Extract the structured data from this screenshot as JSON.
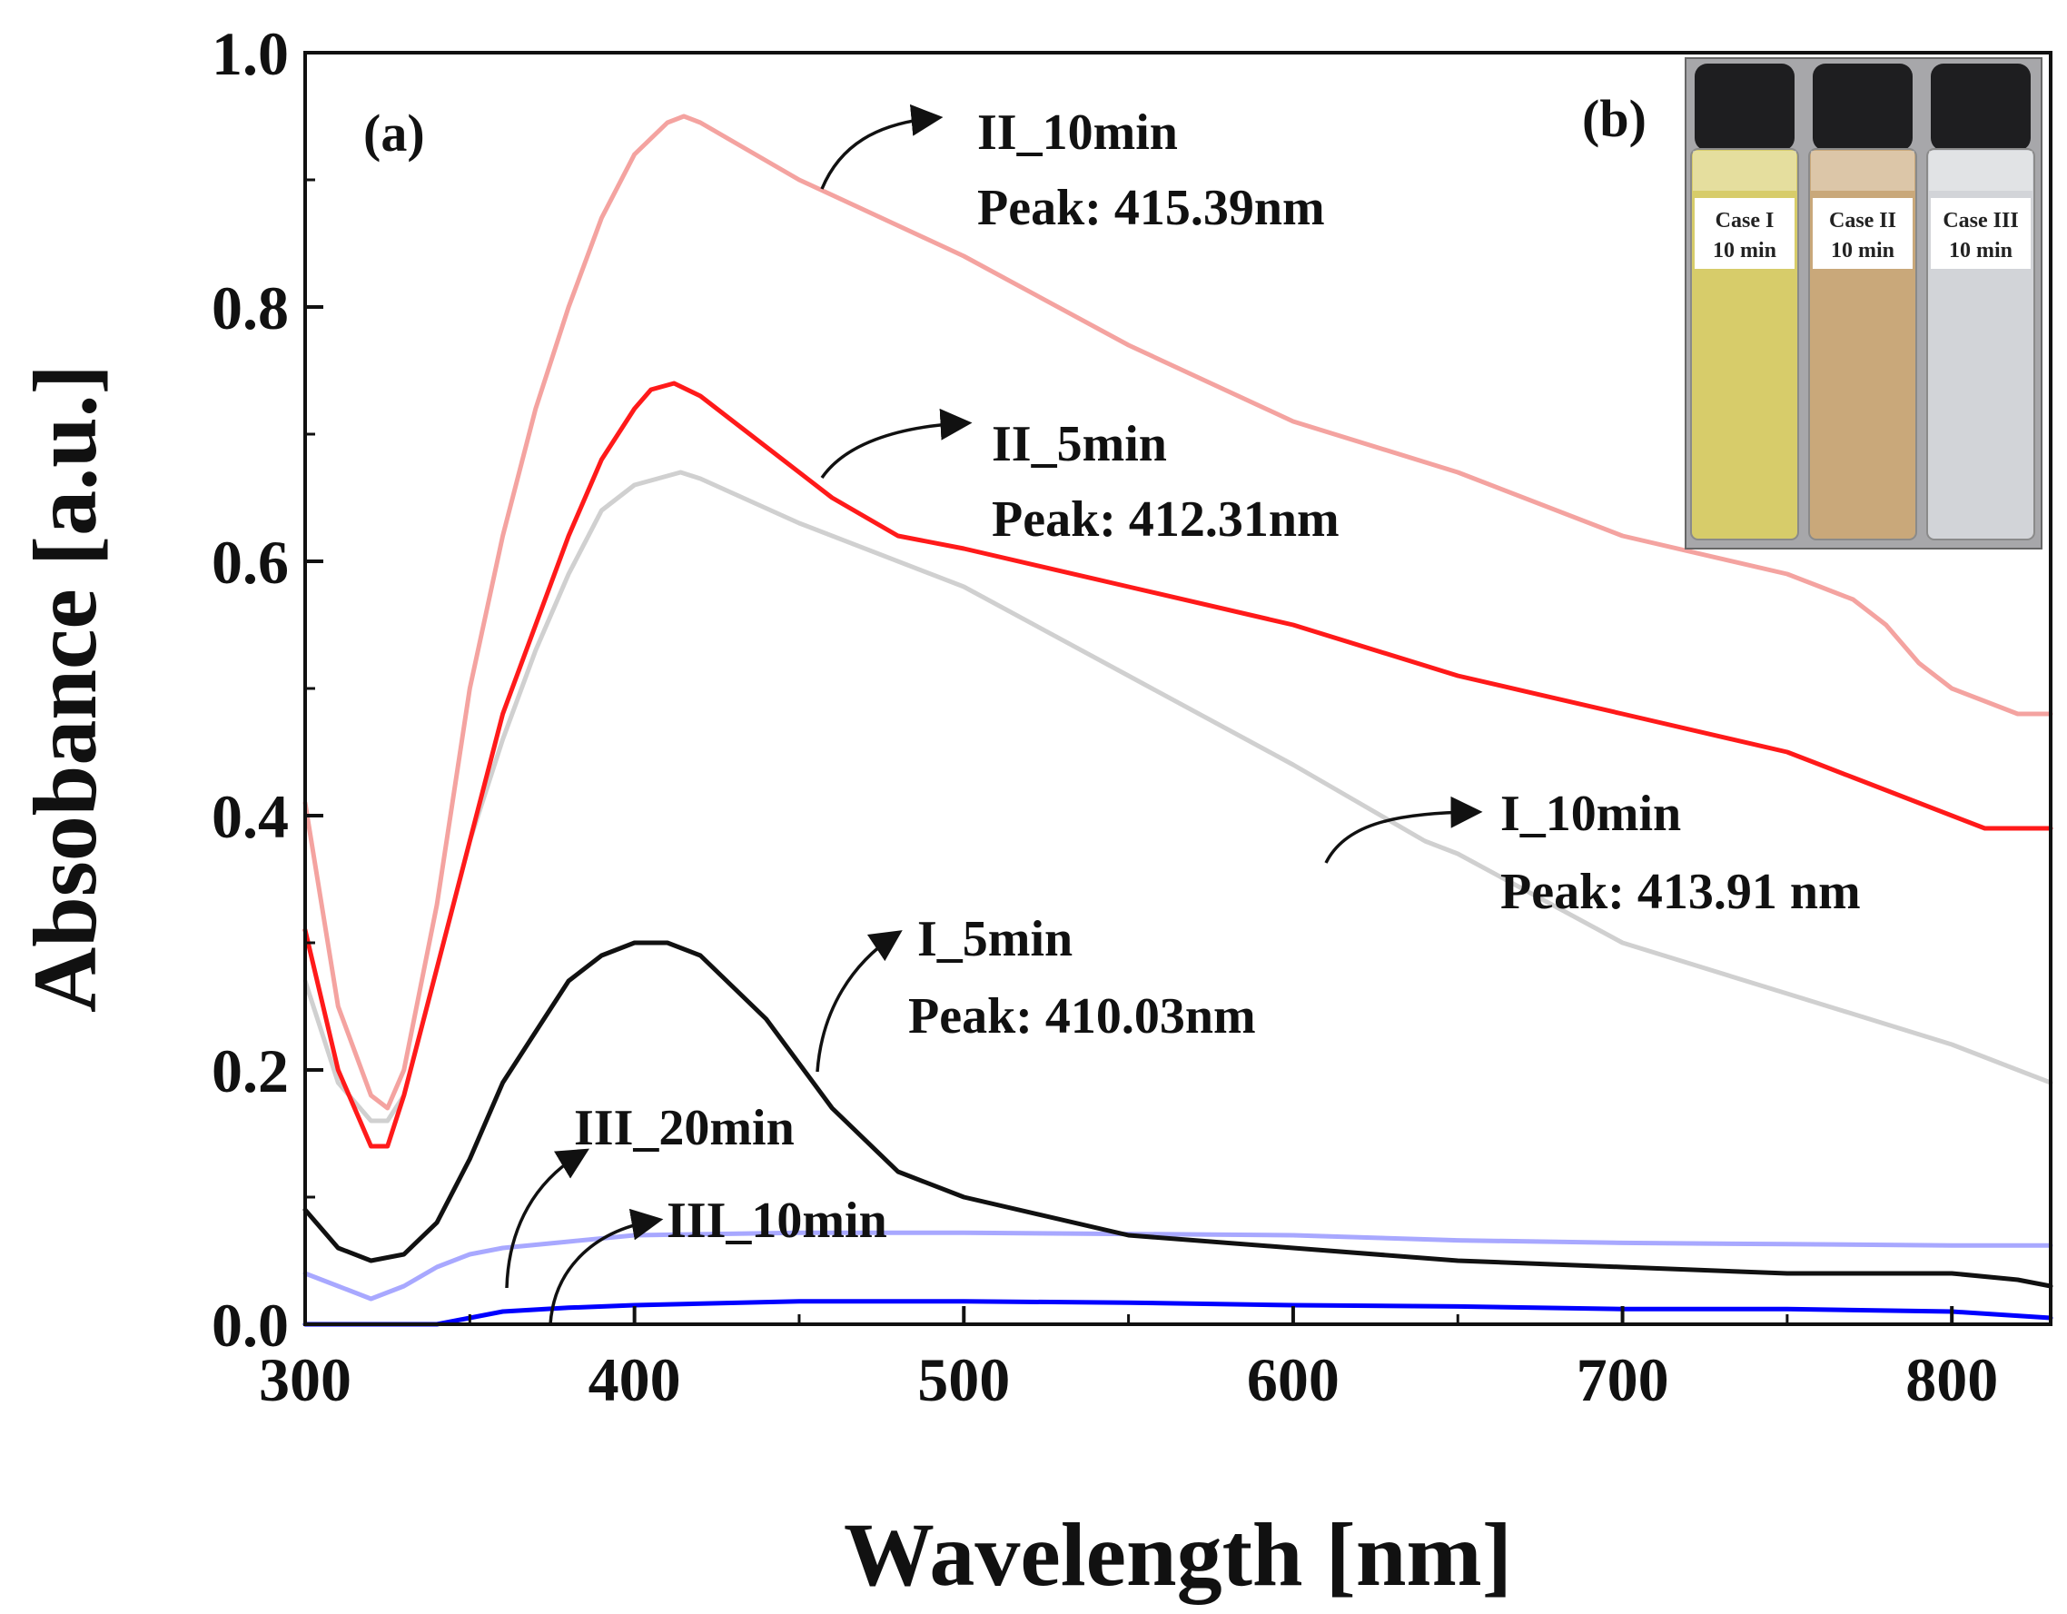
{
  "chart_data": {
    "type": "line",
    "xlabel": "Wavelength [nm]",
    "ylabel": "Absobance [a.u.]",
    "xlim": [
      300,
      830
    ],
    "ylim": [
      0,
      1.0
    ],
    "xticks": [
      300,
      400,
      500,
      600,
      700,
      800
    ],
    "xtick_labels": [
      "300",
      "400",
      "500",
      "600",
      "700",
      "800"
    ],
    "yticks": [
      0.0,
      0.2,
      0.4,
      0.6,
      0.8,
      1.0
    ],
    "ytick_labels": [
      "0.0",
      "0.2",
      "0.4",
      "0.6",
      "0.8",
      "1.0"
    ],
    "grid": false,
    "panel_labels": {
      "a": "(a)",
      "b": "(b)"
    },
    "series": [
      {
        "name": "II_10min",
        "peak_text": "Peak: 415.39nm",
        "color": "#f4a3a0",
        "x": [
          300,
          310,
          320,
          325,
          330,
          340,
          350,
          360,
          370,
          380,
          390,
          400,
          410,
          415,
          420,
          450,
          500,
          550,
          600,
          650,
          700,
          750,
          760,
          770,
          780,
          790,
          800,
          810,
          820,
          830
        ],
        "y": [
          0.41,
          0.25,
          0.18,
          0.17,
          0.2,
          0.33,
          0.5,
          0.62,
          0.72,
          0.8,
          0.87,
          0.92,
          0.945,
          0.95,
          0.945,
          0.9,
          0.84,
          0.77,
          0.71,
          0.67,
          0.62,
          0.59,
          0.58,
          0.57,
          0.55,
          0.52,
          0.5,
          0.49,
          0.48,
          0.48
        ]
      },
      {
        "name": "II_5min",
        "peak_text": "Peak: 412.31nm",
        "color": "#ff1a1a",
        "x": [
          300,
          310,
          320,
          325,
          330,
          340,
          350,
          360,
          370,
          380,
          390,
          400,
          405,
          412,
          420,
          440,
          460,
          480,
          500,
          550,
          600,
          650,
          700,
          750,
          760,
          770,
          780,
          790,
          800,
          810,
          820,
          830
        ],
        "y": [
          0.31,
          0.2,
          0.14,
          0.14,
          0.18,
          0.28,
          0.38,
          0.48,
          0.55,
          0.62,
          0.68,
          0.72,
          0.735,
          0.74,
          0.73,
          0.69,
          0.65,
          0.62,
          0.61,
          0.58,
          0.55,
          0.51,
          0.48,
          0.45,
          0.44,
          0.43,
          0.42,
          0.41,
          0.4,
          0.39,
          0.39,
          0.39
        ]
      },
      {
        "name": "I_10min",
        "peak_text": "Peak: 413.91 nm",
        "color": "#d0d0d0",
        "x": [
          300,
          310,
          320,
          325,
          330,
          340,
          350,
          360,
          370,
          380,
          390,
          400,
          414,
          420,
          450,
          500,
          550,
          600,
          620,
          640,
          650,
          700,
          750,
          800,
          810,
          820,
          830
        ],
        "y": [
          0.27,
          0.19,
          0.16,
          0.16,
          0.18,
          0.28,
          0.38,
          0.46,
          0.53,
          0.59,
          0.64,
          0.66,
          0.67,
          0.665,
          0.63,
          0.58,
          0.51,
          0.44,
          0.41,
          0.38,
          0.37,
          0.3,
          0.26,
          0.22,
          0.21,
          0.2,
          0.19
        ]
      },
      {
        "name": "I_5min",
        "peak_text": "Peak: 410.03nm",
        "color": "#111111",
        "x": [
          300,
          310,
          320,
          330,
          340,
          350,
          360,
          370,
          380,
          390,
          400,
          410,
          420,
          440,
          460,
          480,
          500,
          550,
          600,
          650,
          700,
          750,
          800,
          820,
          830
        ],
        "y": [
          0.09,
          0.06,
          0.05,
          0.055,
          0.08,
          0.13,
          0.19,
          0.23,
          0.27,
          0.29,
          0.3,
          0.3,
          0.29,
          0.24,
          0.17,
          0.12,
          0.1,
          0.07,
          0.06,
          0.05,
          0.045,
          0.04,
          0.04,
          0.035,
          0.03
        ]
      },
      {
        "name": "III_20min",
        "peak_text": "",
        "color": "#a8a8ff",
        "x": [
          300,
          310,
          320,
          330,
          340,
          350,
          360,
          380,
          400,
          450,
          500,
          550,
          600,
          650,
          700,
          750,
          800,
          830
        ],
        "y": [
          0.04,
          0.03,
          0.02,
          0.03,
          0.045,
          0.055,
          0.06,
          0.065,
          0.07,
          0.072,
          0.072,
          0.071,
          0.07,
          0.066,
          0.064,
          0.063,
          0.062,
          0.062
        ]
      },
      {
        "name": "III_10min",
        "peak_text": "",
        "color": "#0000ff",
        "x": [
          300,
          320,
          340,
          350,
          360,
          380,
          400,
          450,
          500,
          550,
          600,
          650,
          700,
          750,
          800,
          830
        ],
        "y": [
          0.0,
          0.0,
          0.0,
          0.005,
          0.01,
          0.013,
          0.015,
          0.018,
          0.018,
          0.017,
          0.015,
          0.014,
          0.012,
          0.012,
          0.01,
          0.005
        ]
      }
    ],
    "inset": {
      "vials": [
        {
          "line1": "Case I",
          "line2": "10 min",
          "color": "#d7cc6a"
        },
        {
          "line1": "Case II",
          "line2": "10 min",
          "color": "#c9a87a"
        },
        {
          "line1": "Case III",
          "line2": "10 min",
          "color": "#d2d4d8"
        }
      ]
    }
  }
}
